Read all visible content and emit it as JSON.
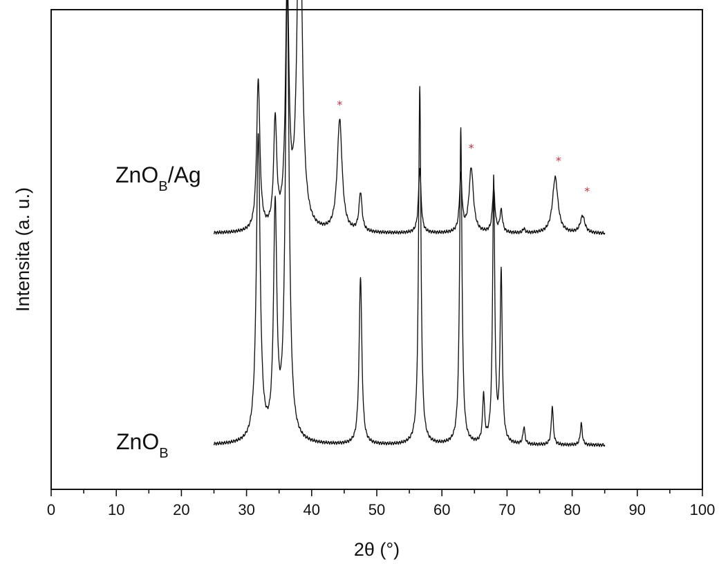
{
  "chart_data": {
    "type": "line",
    "title": "",
    "xlabel": "2θ (°)",
    "ylabel": "Intensita (a. u.)",
    "xlim": [
      0,
      100
    ],
    "ylim": [
      0,
      1
    ],
    "x_ticks": [
      0,
      10,
      20,
      30,
      40,
      50,
      60,
      70,
      80,
      90,
      100
    ],
    "x_tick_labels": [
      "0",
      "10",
      "20",
      "30",
      "40",
      "50",
      "60",
      "70",
      "80",
      "90",
      "100"
    ],
    "y_ticks_visible": false,
    "grid": false,
    "legend": "none",
    "series": [
      {
        "label_parts": [
          "ZnO",
          "B",
          ""
        ],
        "color": "#111111",
        "baseline": 0.08,
        "x_range": [
          25,
          85
        ],
        "peaks": [
          {
            "x": 31.8,
            "height": 0.71,
            "width": 0.35
          },
          {
            "x": 34.4,
            "height": 0.53,
            "width": 0.3
          },
          {
            "x": 36.25,
            "height": 1.05,
            "width": 0.35
          },
          {
            "x": 47.5,
            "height": 0.39,
            "width": 0.25
          },
          {
            "x": 56.6,
            "height": 0.83,
            "width": 0.22
          },
          {
            "x": 62.9,
            "height": 0.73,
            "width": 0.22
          },
          {
            "x": 66.4,
            "height": 0.11,
            "width": 0.18
          },
          {
            "x": 67.95,
            "height": 0.61,
            "width": 0.2
          },
          {
            "x": 69.1,
            "height": 0.39,
            "width": 0.2
          },
          {
            "x": 72.6,
            "height": 0.04,
            "width": 0.18
          },
          {
            "x": 76.95,
            "height": 0.09,
            "width": 0.18
          },
          {
            "x": 81.4,
            "height": 0.05,
            "width": 0.18
          }
        ]
      },
      {
        "label_parts": [
          "ZnO",
          "B",
          "/Ag"
        ],
        "color": "#111111",
        "baseline": 0.57,
        "x_range": [
          25,
          85
        ],
        "peaks": [
          {
            "x": 31.8,
            "height": 0.35,
            "width": 0.3
          },
          {
            "x": 34.4,
            "height": 0.25,
            "width": 0.28
          },
          {
            "x": 36.25,
            "height": 0.56,
            "width": 0.32
          },
          {
            "x": 38.15,
            "height": 0.89,
            "width": 0.42
          },
          {
            "x": 44.3,
            "height": 0.26,
            "width": 0.45
          },
          {
            "x": 47.5,
            "height": 0.09,
            "width": 0.28
          },
          {
            "x": 56.6,
            "height": 0.15,
            "width": 0.24
          },
          {
            "x": 62.9,
            "height": 0.13,
            "width": 0.24
          },
          {
            "x": 64.5,
            "height": 0.15,
            "width": 0.4
          },
          {
            "x": 67.95,
            "height": 0.1,
            "width": 0.24
          },
          {
            "x": 69.1,
            "height": 0.05,
            "width": 0.24
          },
          {
            "x": 72.6,
            "height": 0.01,
            "width": 0.2
          },
          {
            "x": 77.4,
            "height": 0.13,
            "width": 0.5
          },
          {
            "x": 81.6,
            "height": 0.04,
            "width": 0.42
          }
        ]
      }
    ],
    "annotations": [
      {
        "text": "*",
        "x": 38.15,
        "y": 1.49,
        "color": "#d22b3a"
      },
      {
        "text": "*",
        "x": 44.3,
        "y": 0.86,
        "color": "#d22b3a"
      },
      {
        "text": "*",
        "x": 64.5,
        "y": 0.76,
        "color": "#d22b3a"
      },
      {
        "text": "*",
        "x": 77.9,
        "y": 0.73,
        "color": "#d22b3a"
      },
      {
        "text": "*",
        "x": 82.3,
        "y": 0.66,
        "color": "#d22b3a"
      }
    ]
  }
}
